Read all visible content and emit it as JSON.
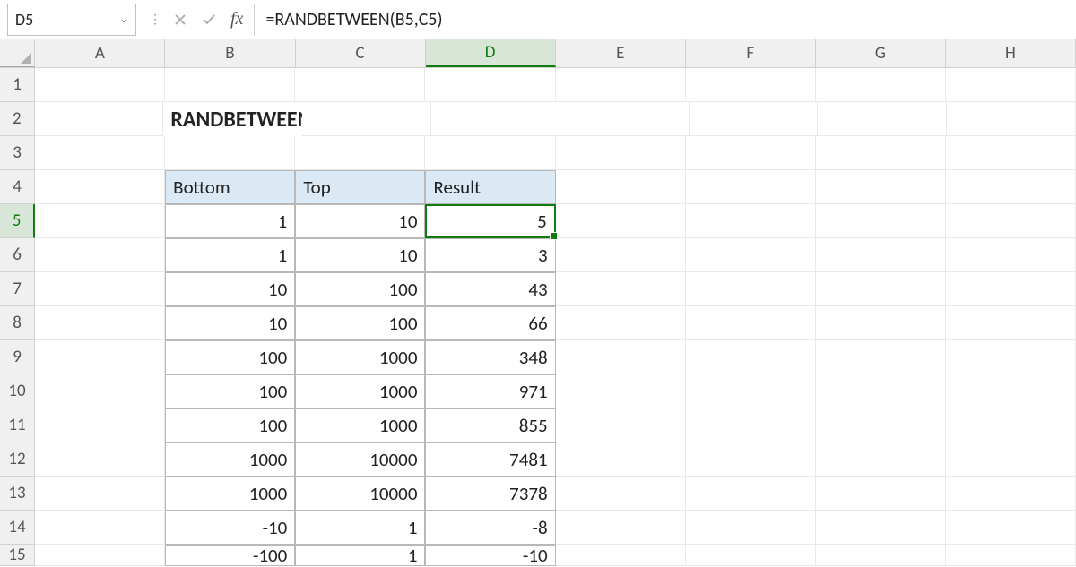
{
  "formulaBar": {
    "nameBox": "D5",
    "formula": "=RANDBETWEEN(B5,C5)"
  },
  "columns": [
    "A",
    "B",
    "C",
    "D",
    "E",
    "F",
    "G",
    "H"
  ],
  "activeColumn": "D",
  "activeRow": 5,
  "rowCount": 15,
  "colWidths": {
    "A": 155,
    "B": 155,
    "C": 155,
    "D": 155,
    "E": 155,
    "F": 155,
    "G": 155,
    "H": 155
  },
  "rowHeaderWidth": 42,
  "title": {
    "cell": "B2",
    "text": "RANDBETWEEN function"
  },
  "table": {
    "headerRow": 4,
    "startRow": 5,
    "endRow": 15,
    "columns": [
      "B",
      "C",
      "D"
    ],
    "headers": {
      "B": "Bottom",
      "C": "Top",
      "D": "Result"
    },
    "headerBg": "#dae9f4",
    "borderColor": "#b8b8b8",
    "rows": [
      {
        "B": "1",
        "C": "10",
        "D": "5"
      },
      {
        "B": "1",
        "C": "10",
        "D": "3"
      },
      {
        "B": "10",
        "C": "100",
        "D": "43"
      },
      {
        "B": "10",
        "C": "100",
        "D": "66"
      },
      {
        "B": "100",
        "C": "1000",
        "D": "348"
      },
      {
        "B": "100",
        "C": "1000",
        "D": "971"
      },
      {
        "B": "100",
        "C": "1000",
        "D": "855"
      },
      {
        "B": "1000",
        "C": "10000",
        "D": "7481"
      },
      {
        "B": "1000",
        "C": "10000",
        "D": "7378"
      },
      {
        "B": "-10",
        "C": "1",
        "D": "-8"
      },
      {
        "B": "-100",
        "C": "1",
        "D": "-10"
      }
    ]
  },
  "selection": {
    "col": "D",
    "row": 5
  },
  "colors": {
    "gridLine": "#e8e8e8",
    "headerBg": "#f0f0f0",
    "activeHeaderBg": "#d8e6d8",
    "selectionBorder": "#107c10"
  }
}
